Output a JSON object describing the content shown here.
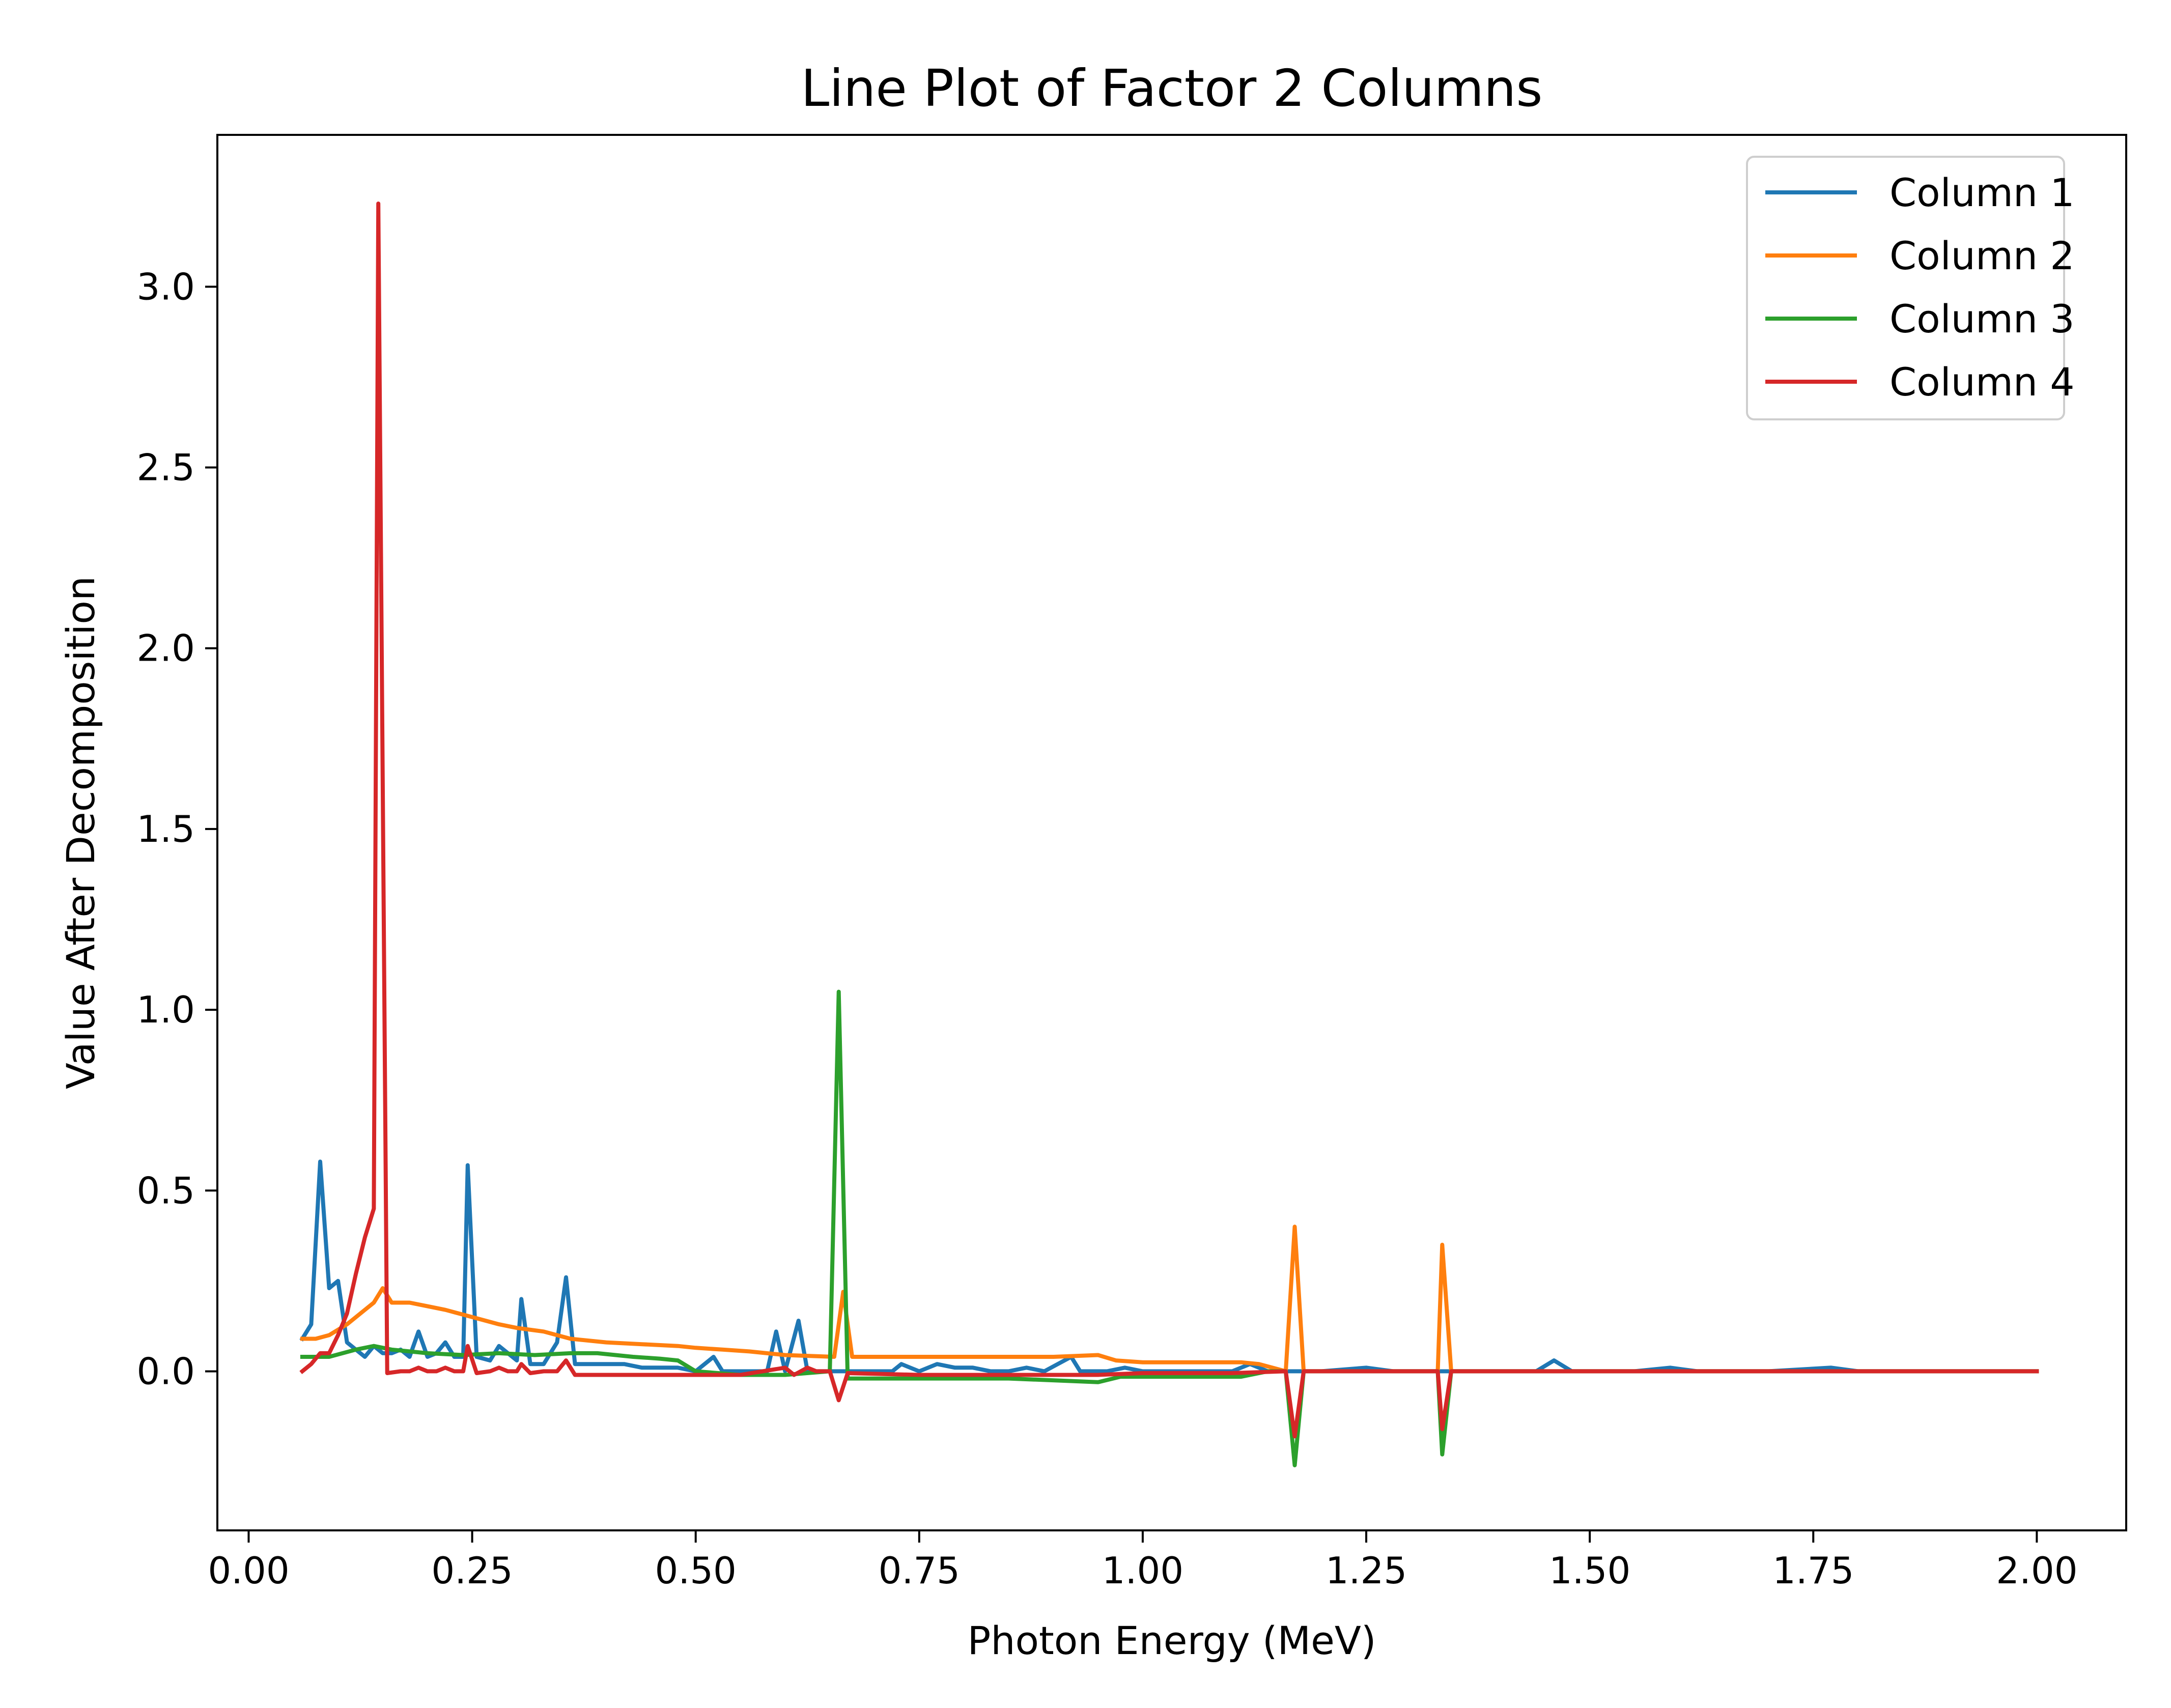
{
  "chart_data": {
    "type": "line",
    "title": "Line Plot of Factor 2 Columns",
    "xlabel": "Photon Energy (MeV)",
    "ylabel": "Value After Decomposition",
    "xlim": [
      -0.035,
      2.1
    ],
    "ylim": [
      -0.44,
      3.42
    ],
    "xticks": [
      0.0,
      0.25,
      0.5,
      0.75,
      1.0,
      1.25,
      1.5,
      1.75,
      2.0
    ],
    "xtick_labels": [
      "0.00",
      "0.25",
      "0.50",
      "0.75",
      "1.00",
      "1.25",
      "1.50",
      "1.75",
      "2.00"
    ],
    "yticks": [
      0.0,
      0.5,
      1.0,
      1.5,
      2.0,
      2.5,
      3.0
    ],
    "ytick_labels": [
      "0.0",
      "0.5",
      "1.0",
      "1.5",
      "2.0",
      "2.5",
      "3.0"
    ],
    "grid": false,
    "legend_position": "top-right",
    "series": [
      {
        "name": "Column 1",
        "color": "#1f77b4",
        "points": [
          [
            0.06,
            0.09
          ],
          [
            0.07,
            0.13
          ],
          [
            0.08,
            0.58
          ],
          [
            0.09,
            0.23
          ],
          [
            0.1,
            0.25
          ],
          [
            0.11,
            0.08
          ],
          [
            0.12,
            0.06
          ],
          [
            0.13,
            0.04
          ],
          [
            0.14,
            0.07
          ],
          [
            0.15,
            0.05
          ],
          [
            0.16,
            0.05
          ],
          [
            0.17,
            0.06
          ],
          [
            0.18,
            0.04
          ],
          [
            0.19,
            0.11
          ],
          [
            0.2,
            0.04
          ],
          [
            0.21,
            0.05
          ],
          [
            0.22,
            0.08
          ],
          [
            0.23,
            0.04
          ],
          [
            0.24,
            0.04
          ],
          [
            0.245,
            0.57
          ],
          [
            0.255,
            0.04
          ],
          [
            0.27,
            0.03
          ],
          [
            0.28,
            0.07
          ],
          [
            0.29,
            0.05
          ],
          [
            0.3,
            0.03
          ],
          [
            0.305,
            0.2
          ],
          [
            0.315,
            0.02
          ],
          [
            0.33,
            0.02
          ],
          [
            0.345,
            0.08
          ],
          [
            0.355,
            0.26
          ],
          [
            0.365,
            0.02
          ],
          [
            0.38,
            0.02
          ],
          [
            0.4,
            0.02
          ],
          [
            0.42,
            0.02
          ],
          [
            0.44,
            0.01
          ],
          [
            0.46,
            0.01
          ],
          [
            0.48,
            0.01
          ],
          [
            0.5,
            0.0
          ],
          [
            0.52,
            0.04
          ],
          [
            0.53,
            0.0
          ],
          [
            0.56,
            0.0
          ],
          [
            0.58,
            0.0
          ],
          [
            0.59,
            0.11
          ],
          [
            0.6,
            0.0
          ],
          [
            0.615,
            0.14
          ],
          [
            0.625,
            0.0
          ],
          [
            0.65,
            0.0
          ],
          [
            0.68,
            0.0
          ],
          [
            0.72,
            0.0
          ],
          [
            0.73,
            0.02
          ],
          [
            0.75,
            0.0
          ],
          [
            0.77,
            0.02
          ],
          [
            0.79,
            0.01
          ],
          [
            0.81,
            0.01
          ],
          [
            0.83,
            0.0
          ],
          [
            0.85,
            0.0
          ],
          [
            0.87,
            0.01
          ],
          [
            0.89,
            0.0
          ],
          [
            0.92,
            0.04
          ],
          [
            0.93,
            0.0
          ],
          [
            0.96,
            0.0
          ],
          [
            0.98,
            0.01
          ],
          [
            1.0,
            0.0
          ],
          [
            1.05,
            0.0
          ],
          [
            1.1,
            0.0
          ],
          [
            1.12,
            0.02
          ],
          [
            1.14,
            0.0
          ],
          [
            1.2,
            0.0
          ],
          [
            1.25,
            0.01
          ],
          [
            1.28,
            0.0
          ],
          [
            1.35,
            0.0
          ],
          [
            1.38,
            0.0
          ],
          [
            1.44,
            0.0
          ],
          [
            1.46,
            0.03
          ],
          [
            1.48,
            0.0
          ],
          [
            1.55,
            0.0
          ],
          [
            1.59,
            0.01
          ],
          [
            1.62,
            0.0
          ],
          [
            1.7,
            0.0
          ],
          [
            1.77,
            0.01
          ],
          [
            1.8,
            0.0
          ],
          [
            1.9,
            0.0
          ],
          [
            2.0,
            0.0
          ]
        ]
      },
      {
        "name": "Column 2",
        "color": "#ff7f0e",
        "points": [
          [
            0.06,
            0.09
          ],
          [
            0.075,
            0.09
          ],
          [
            0.09,
            0.1
          ],
          [
            0.11,
            0.13
          ],
          [
            0.13,
            0.17
          ],
          [
            0.14,
            0.19
          ],
          [
            0.15,
            0.23
          ],
          [
            0.16,
            0.19
          ],
          [
            0.18,
            0.19
          ],
          [
            0.2,
            0.18
          ],
          [
            0.22,
            0.17
          ],
          [
            0.25,
            0.15
          ],
          [
            0.28,
            0.13
          ],
          [
            0.3,
            0.12
          ],
          [
            0.33,
            0.11
          ],
          [
            0.36,
            0.09
          ],
          [
            0.4,
            0.08
          ],
          [
            0.44,
            0.075
          ],
          [
            0.48,
            0.07
          ],
          [
            0.5,
            0.065
          ],
          [
            0.53,
            0.06
          ],
          [
            0.56,
            0.055
          ],
          [
            0.6,
            0.045
          ],
          [
            0.655,
            0.04
          ],
          [
            0.665,
            0.22
          ],
          [
            0.675,
            0.04
          ],
          [
            0.7,
            0.04
          ],
          [
            0.8,
            0.04
          ],
          [
            0.9,
            0.04
          ],
          [
            0.95,
            0.045
          ],
          [
            0.97,
            0.03
          ],
          [
            1.0,
            0.025
          ],
          [
            1.05,
            0.025
          ],
          [
            1.11,
            0.025
          ],
          [
            1.13,
            0.02
          ],
          [
            1.16,
            0.0
          ],
          [
            1.17,
            0.4
          ],
          [
            1.18,
            0.0
          ],
          [
            1.25,
            0.0
          ],
          [
            1.33,
            0.0
          ],
          [
            1.335,
            0.35
          ],
          [
            1.345,
            0.0
          ],
          [
            1.45,
            0.0
          ],
          [
            1.6,
            0.0
          ],
          [
            1.8,
            0.0
          ],
          [
            2.0,
            0.0
          ]
        ]
      },
      {
        "name": "Column 3",
        "color": "#2ca02c",
        "points": [
          [
            0.06,
            0.04
          ],
          [
            0.09,
            0.04
          ],
          [
            0.12,
            0.06
          ],
          [
            0.14,
            0.07
          ],
          [
            0.16,
            0.06
          ],
          [
            0.2,
            0.05
          ],
          [
            0.24,
            0.045
          ],
          [
            0.28,
            0.05
          ],
          [
            0.32,
            0.045
          ],
          [
            0.36,
            0.05
          ],
          [
            0.39,
            0.05
          ],
          [
            0.43,
            0.04
          ],
          [
            0.46,
            0.035
          ],
          [
            0.48,
            0.03
          ],
          [
            0.5,
            0.0
          ],
          [
            0.55,
            -0.01
          ],
          [
            0.6,
            -0.01
          ],
          [
            0.65,
            0.0
          ],
          [
            0.66,
            1.05
          ],
          [
            0.67,
            -0.02
          ],
          [
            0.75,
            -0.02
          ],
          [
            0.85,
            -0.02
          ],
          [
            0.95,
            -0.03
          ],
          [
            0.975,
            -0.015
          ],
          [
            1.05,
            -0.015
          ],
          [
            1.11,
            -0.015
          ],
          [
            1.14,
            0.0
          ],
          [
            1.16,
            0.0
          ],
          [
            1.17,
            -0.26
          ],
          [
            1.18,
            0.0
          ],
          [
            1.25,
            0.0
          ],
          [
            1.33,
            0.0
          ],
          [
            1.335,
            -0.23
          ],
          [
            1.345,
            0.0
          ],
          [
            1.45,
            0.0
          ],
          [
            1.6,
            0.0
          ],
          [
            1.8,
            0.0
          ],
          [
            2.0,
            0.0
          ]
        ]
      },
      {
        "name": "Column 4",
        "color": "#d62728",
        "points": [
          [
            0.06,
            0.0
          ],
          [
            0.07,
            0.02
          ],
          [
            0.08,
            0.05
          ],
          [
            0.09,
            0.05
          ],
          [
            0.1,
            0.1
          ],
          [
            0.11,
            0.16
          ],
          [
            0.12,
            0.27
          ],
          [
            0.13,
            0.37
          ],
          [
            0.14,
            0.45
          ],
          [
            0.145,
            3.23
          ],
          [
            0.155,
            -0.005
          ],
          [
            0.17,
            0.0
          ],
          [
            0.18,
            0.0
          ],
          [
            0.19,
            0.01
          ],
          [
            0.2,
            0.0
          ],
          [
            0.21,
            0.0
          ],
          [
            0.22,
            0.01
          ],
          [
            0.23,
            0.0
          ],
          [
            0.24,
            0.0
          ],
          [
            0.245,
            0.07
          ],
          [
            0.255,
            -0.005
          ],
          [
            0.27,
            0.0
          ],
          [
            0.28,
            0.01
          ],
          [
            0.29,
            0.0
          ],
          [
            0.3,
            0.0
          ],
          [
            0.305,
            0.02
          ],
          [
            0.315,
            -0.005
          ],
          [
            0.33,
            0.0
          ],
          [
            0.345,
            0.0
          ],
          [
            0.355,
            0.03
          ],
          [
            0.365,
            -0.01
          ],
          [
            0.4,
            -0.01
          ],
          [
            0.45,
            -0.01
          ],
          [
            0.5,
            -0.01
          ],
          [
            0.55,
            -0.01
          ],
          [
            0.6,
            0.01
          ],
          [
            0.61,
            -0.01
          ],
          [
            0.625,
            0.01
          ],
          [
            0.635,
            0.0
          ],
          [
            0.65,
            0.0
          ],
          [
            0.66,
            -0.08
          ],
          [
            0.67,
            -0.005
          ],
          [
            0.75,
            -0.01
          ],
          [
            0.85,
            -0.01
          ],
          [
            0.95,
            -0.01
          ],
          [
            1.0,
            -0.005
          ],
          [
            1.1,
            -0.005
          ],
          [
            1.16,
            0.0
          ],
          [
            1.17,
            -0.18
          ],
          [
            1.18,
            0.0
          ],
          [
            1.25,
            0.0
          ],
          [
            1.33,
            0.0
          ],
          [
            1.335,
            -0.16
          ],
          [
            1.345,
            0.0
          ],
          [
            1.45,
            0.0
          ],
          [
            1.6,
            0.0
          ],
          [
            1.8,
            0.0
          ],
          [
            2.0,
            0.0
          ]
        ]
      }
    ]
  }
}
